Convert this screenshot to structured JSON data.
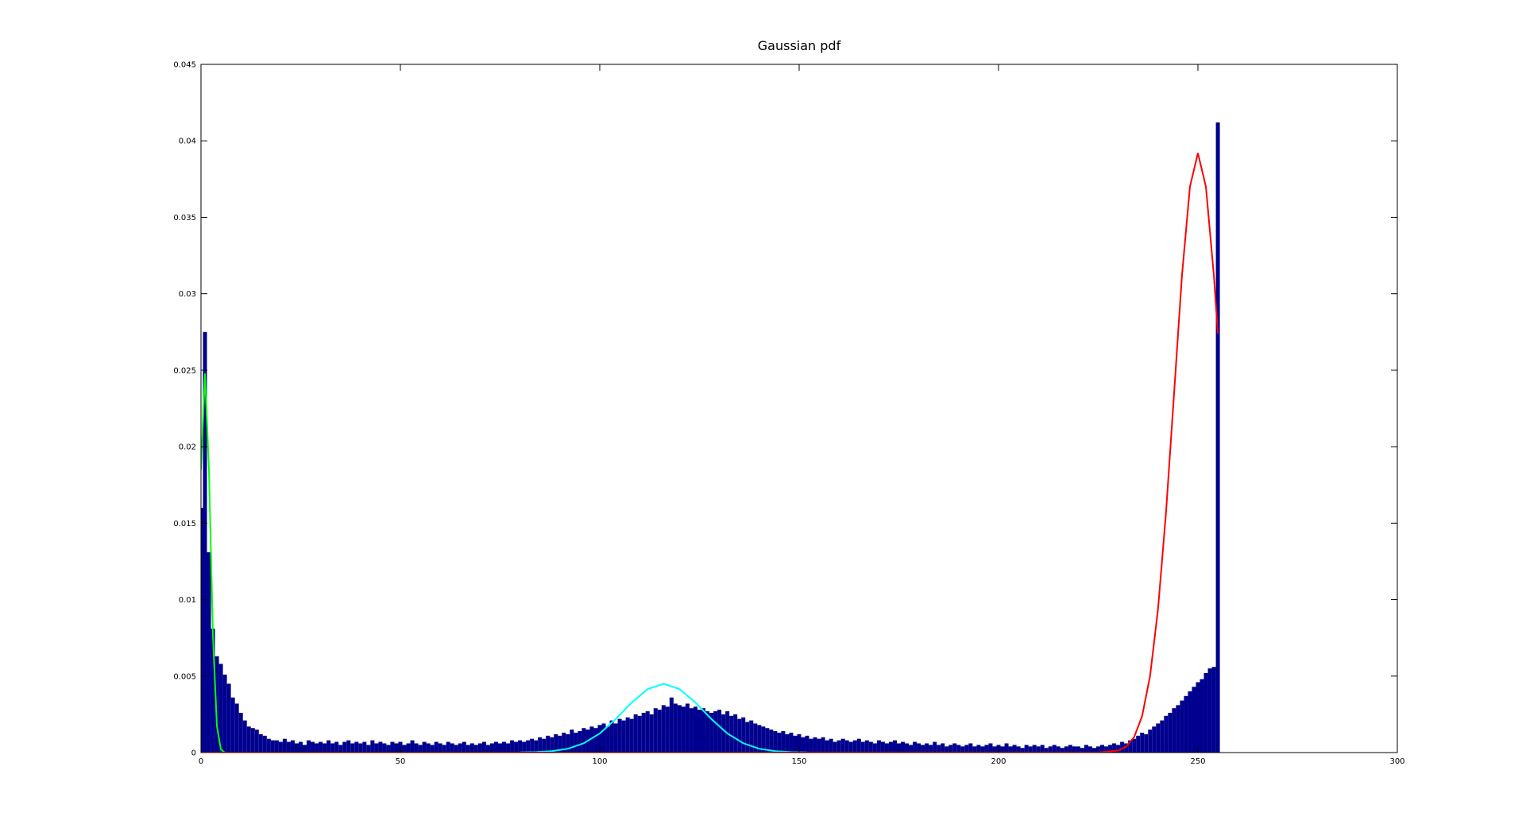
{
  "chart_data": {
    "type": "histogram",
    "title": "Gaussian pdf",
    "bins": [
      -0.5,
      0.5,
      1.5,
      2.5,
      3.5,
      4.5,
      5.5,
      6.5,
      7.5,
      8.5,
      9.5,
      10.5,
      11.5,
      12.5,
      13.5,
      14.5,
      15.5,
      16.5,
      17.5,
      18.5,
      19.5,
      20.5,
      21.5,
      22.5,
      23.5,
      24.5,
      25.5,
      26.5,
      27.5,
      28.5,
      29.5,
      30.5,
      31.5,
      32.5,
      33.5,
      34.5,
      35.5,
      36.5,
      37.5,
      38.5,
      39.5,
      40.5,
      41.5,
      42.5,
      43.5,
      44.5,
      45.5,
      46.5,
      47.5,
      48.5,
      49.5,
      50.5,
      51.5,
      52.5,
      53.5,
      54.5,
      55.5,
      56.5,
      57.5,
      58.5,
      59.5,
      60.5,
      61.5,
      62.5,
      63.5,
      64.5,
      65.5,
      66.5,
      67.5,
      68.5,
      69.5,
      70.5,
      71.5,
      72.5,
      73.5,
      74.5,
      75.5,
      76.5,
      77.5,
      78.5,
      79.5,
      80.5,
      81.5,
      82.5,
      83.5,
      84.5,
      85.5,
      86.5,
      87.5,
      88.5,
      89.5,
      90.5,
      91.5,
      92.5,
      93.5,
      94.5,
      95.5,
      96.5,
      97.5,
      98.5,
      99.5,
      100.5,
      101.5,
      102.5,
      103.5,
      104.5,
      105.5,
      106.5,
      107.5,
      108.5,
      109.5,
      110.5,
      111.5,
      112.5,
      113.5,
      114.5,
      115.5,
      116.5,
      117.5,
      118.5,
      119.5,
      120.5,
      121.5,
      122.5,
      123.5,
      124.5,
      125.5,
      126.5,
      127.5,
      128.5,
      129.5,
      130.5,
      131.5,
      132.5,
      133.5,
      134.5,
      135.5,
      136.5,
      137.5,
      138.5,
      139.5,
      140.5,
      141.5,
      142.5,
      143.5,
      144.5,
      145.5,
      146.5,
      147.5,
      148.5,
      149.5,
      150.5,
      151.5,
      152.5,
      153.5,
      154.5,
      155.5,
      156.5,
      157.5,
      158.5,
      159.5,
      160.5,
      161.5,
      162.5,
      163.5,
      164.5,
      165.5,
      166.5,
      167.5,
      168.5,
      169.5,
      170.5,
      171.5,
      172.5,
      173.5,
      174.5,
      175.5,
      176.5,
      177.5,
      178.5,
      179.5,
      180.5,
      181.5,
      182.5,
      183.5,
      184.5,
      185.5,
      186.5,
      187.5,
      188.5,
      189.5,
      190.5,
      191.5,
      192.5,
      193.5,
      194.5,
      195.5,
      196.5,
      197.5,
      198.5,
      199.5,
      200.5,
      201.5,
      202.5,
      203.5,
      204.5,
      205.5,
      206.5,
      207.5,
      208.5,
      209.5,
      210.5,
      211.5,
      212.5,
      213.5,
      214.5,
      215.5,
      216.5,
      217.5,
      218.5,
      219.5,
      220.5,
      221.5,
      222.5,
      223.5,
      224.5,
      225.5,
      226.5,
      227.5,
      228.5,
      229.5,
      230.5,
      231.5,
      232.5,
      233.5,
      234.5,
      235.5,
      236.5,
      237.5,
      238.5,
      239.5,
      240.5,
      241.5,
      242.5,
      243.5,
      244.5,
      245.5,
      246.5,
      247.5,
      248.5,
      249.5,
      250.5,
      251.5,
      252.5,
      253.5,
      254.5,
      255.5
    ],
    "values": [
      0.016,
      0.0275,
      0.0131,
      0.0081,
      0.0063,
      0.0058,
      0.0051,
      0.0045,
      0.0036,
      0.0032,
      0.0026,
      0.0021,
      0.0017,
      0.0016,
      0.0015,
      0.0012,
      0.0011,
      0.0009,
      0.0008,
      0.0008,
      0.0007,
      0.0009,
      0.0007,
      0.0008,
      0.0006,
      0.0007,
      0.0005,
      0.0008,
      0.0007,
      0.0006,
      0.0007,
      0.0006,
      0.0008,
      0.0006,
      0.0007,
      0.0005,
      0.0007,
      0.0008,
      0.0006,
      0.0007,
      0.0006,
      0.0007,
      0.0005,
      0.0008,
      0.0006,
      0.0007,
      0.0006,
      0.0005,
      0.0007,
      0.0006,
      0.0007,
      0.0005,
      0.0006,
      0.0008,
      0.0006,
      0.0005,
      0.0007,
      0.0006,
      0.0005,
      0.0007,
      0.0006,
      0.0005,
      0.0007,
      0.0006,
      0.0005,
      0.0006,
      0.0007,
      0.0005,
      0.0006,
      0.0005,
      0.0006,
      0.0007,
      0.0005,
      0.0006,
      0.0007,
      0.0006,
      0.0007,
      0.0006,
      0.0008,
      0.0007,
      0.0008,
      0.0007,
      0.0008,
      0.0009,
      0.0008,
      0.001,
      0.0009,
      0.0011,
      0.001,
      0.0012,
      0.0011,
      0.0013,
      0.0012,
      0.0015,
      0.0013,
      0.0014,
      0.0016,
      0.0015,
      0.0017,
      0.0016,
      0.0018,
      0.0019,
      0.0017,
      0.0021,
      0.0019,
      0.0022,
      0.0021,
      0.0023,
      0.0022,
      0.0025,
      0.0024,
      0.0026,
      0.0027,
      0.0025,
      0.0029,
      0.0028,
      0.0031,
      0.003,
      0.0036,
      0.0032,
      0.0031,
      0.003,
      0.0032,
      0.0029,
      0.003,
      0.0028,
      0.0029,
      0.0027,
      0.0026,
      0.0027,
      0.0028,
      0.0025,
      0.0027,
      0.0024,
      0.0025,
      0.0022,
      0.0023,
      0.002,
      0.0021,
      0.0019,
      0.0018,
      0.0017,
      0.0016,
      0.0015,
      0.0014,
      0.0013,
      0.0014,
      0.0012,
      0.0013,
      0.0011,
      0.0012,
      0.001,
      0.0011,
      0.0009,
      0.001,
      0.0009,
      0.001,
      0.0008,
      0.0009,
      0.0007,
      0.0008,
      0.0009,
      0.0008,
      0.0007,
      0.0008,
      0.0009,
      0.0007,
      0.0008,
      0.0007,
      0.0006,
      0.0008,
      0.0007,
      0.0006,
      0.0007,
      0.0008,
      0.0006,
      0.0007,
      0.0006,
      0.0005,
      0.0007,
      0.0006,
      0.0005,
      0.0006,
      0.0005,
      0.0007,
      0.0005,
      0.0006,
      0.0004,
      0.0005,
      0.0006,
      0.0005,
      0.0004,
      0.0005,
      0.0006,
      0.0004,
      0.0005,
      0.0004,
      0.0005,
      0.0006,
      0.0004,
      0.0005,
      0.0004,
      0.0006,
      0.0004,
      0.0005,
      0.0004,
      0.0003,
      0.0005,
      0.0004,
      0.0005,
      0.0004,
      0.0005,
      0.0003,
      0.0004,
      0.0005,
      0.0004,
      0.0003,
      0.0004,
      0.0005,
      0.0004,
      0.0004,
      0.0003,
      0.0005,
      0.0004,
      0.0003,
      0.0004,
      0.0005,
      0.0004,
      0.0005,
      0.0006,
      0.0005,
      0.0007,
      0.0006,
      0.0008,
      0.0009,
      0.0011,
      0.0013,
      0.0012,
      0.0015,
      0.0017,
      0.0019,
      0.0021,
      0.0024,
      0.0026,
      0.0029,
      0.0031,
      0.0034,
      0.0037,
      0.004,
      0.0043,
      0.0046,
      0.0048,
      0.0052,
      0.0055,
      0.0056,
      0.0412
    ],
    "color": "#00008f",
    "series": [
      {
        "color": "#00ff00",
        "x": [
          0,
          1,
          2,
          3,
          4,
          5,
          6,
          8,
          10
        ],
        "values": [
          0.0185,
          0.0248,
          0.0185,
          0.0076,
          0.0017,
          0.0002,
          0,
          0,
          0
        ]
      },
      {
        "color": "#00ffff",
        "x": [
          80,
          84,
          88,
          92,
          96,
          100,
          104,
          108,
          112,
          116,
          120,
          124,
          128,
          132,
          136,
          140,
          144,
          148,
          152
        ],
        "values": [
          1e-05,
          3e-05,
          9e-05,
          0.00025,
          0.00061,
          0.00125,
          0.00219,
          0.00327,
          0.00415,
          0.0045,
          0.00415,
          0.00327,
          0.00219,
          0.00125,
          0.00061,
          0.00025,
          9e-05,
          3e-05,
          1e-05
        ]
      },
      {
        "color": "#ff0000",
        "x": [
          0,
          225,
          230,
          232,
          234,
          236,
          238,
          240,
          242,
          244,
          246,
          248,
          250,
          252,
          254,
          255
        ],
        "values": [
          0,
          5e-06,
          0.00013,
          0.00038,
          0.00101,
          0.00238,
          0.00501,
          0.0094,
          0.0157,
          0.0234,
          0.0312,
          0.037,
          0.0392,
          0.037,
          0.0312,
          0.0274
        ]
      }
    ],
    "xlim": [
      0,
      300
    ],
    "xticks": [
      0,
      50,
      100,
      150,
      200,
      250,
      300
    ],
    "ylim": [
      0,
      0.045
    ],
    "yticks": [
      0,
      0.005,
      0.01,
      0.015,
      0.02,
      0.025,
      0.03,
      0.035,
      0.04,
      0.045
    ]
  }
}
